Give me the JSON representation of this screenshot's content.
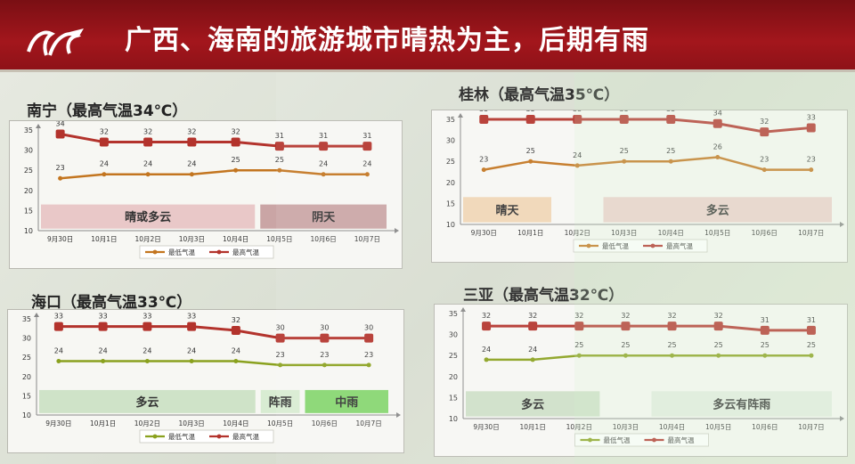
{
  "header": {
    "title": "广西、海南的旅游城市晴热为主，后期有雨"
  },
  "chart_data": [
    {
      "type": "line",
      "city": "南宁",
      "title": "南宁（最高气温34℃）",
      "categories": [
        "9月30日",
        "10月1日",
        "10月2日",
        "10月3日",
        "10月4日",
        "10月5日",
        "10月6日",
        "10月7日"
      ],
      "ylim": [
        10,
        35
      ],
      "yticks": [
        10,
        15,
        20,
        25,
        30,
        35
      ],
      "series": [
        {
          "name": "最高气温",
          "values": [
            34,
            32,
            32,
            32,
            32,
            31,
            31,
            31
          ],
          "color": "#b3332c"
        },
        {
          "name": "最低气温",
          "values": [
            23,
            24,
            24,
            24,
            25,
            25,
            24,
            24
          ],
          "color": "#c3751f"
        }
      ],
      "weather_bands": [
        {
          "label": "晴或多云",
          "start": 0,
          "end": 5,
          "color": "#e9c8c8"
        },
        {
          "label": "阴天",
          "start": 5,
          "end": 7,
          "color": "#caa5a5"
        }
      ],
      "legend": true
    },
    {
      "type": "line",
      "city": "桂林",
      "title": "桂林（最高气温35℃）",
      "categories": [
        "9月30日",
        "10月1日",
        "10月2日",
        "10月3日",
        "10月4日",
        "10月5日",
        "10月6日",
        "10月7日"
      ],
      "ylim": [
        10,
        35
      ],
      "yticks": [
        10,
        15,
        20,
        25,
        30,
        35
      ],
      "series": [
        {
          "name": "最高气温",
          "values": [
            35,
            35,
            35,
            35,
            35,
            34,
            32,
            33
          ],
          "color": "#b3332c"
        },
        {
          "name": "最低气温",
          "values": [
            23,
            25,
            24,
            25,
            25,
            26,
            23,
            23
          ],
          "color": "#c3751f"
        }
      ],
      "weather_bands": [
        {
          "label": "晴天",
          "start": 0,
          "end": 2,
          "color": "#f0d6b6"
        },
        {
          "label": "多云",
          "start": 3,
          "end": 7,
          "color": "#ecd1cc"
        }
      ],
      "legend": true
    },
    {
      "type": "line",
      "city": "海口",
      "title": "海口（最高气温33℃）",
      "categories": [
        "9月30日",
        "10月1日",
        "10月2日",
        "10月3日",
        "10月4日",
        "10月5日",
        "10月6日",
        "10月7日"
      ],
      "ylim": [
        10,
        35
      ],
      "yticks": [
        10,
        15,
        20,
        25,
        30,
        35
      ],
      "series": [
        {
          "name": "最高气温",
          "values": [
            33,
            33,
            33,
            33,
            32,
            30,
            30,
            30
          ],
          "color": "#b3332c"
        },
        {
          "name": "最低气温",
          "values": [
            24,
            24,
            24,
            24,
            24,
            23,
            23,
            23
          ],
          "color": "#8aa11e"
        }
      ],
      "weather_bands": [
        {
          "label": "多云",
          "start": 0,
          "end": 5,
          "color": "#cfe3c8"
        },
        {
          "label": "阵雨",
          "start": 5,
          "end": 6,
          "color": "#d8ecd2"
        },
        {
          "label": "中雨",
          "start": 6,
          "end": 7,
          "color": "#86d66f"
        }
      ],
      "legend": true
    },
    {
      "type": "line",
      "city": "三亚",
      "title": "三亚（最高气温32℃）",
      "categories": [
        "9月30日",
        "10月1日",
        "10月2日",
        "10月3日",
        "10月4日",
        "10月5日",
        "10月6日",
        "10月7日"
      ],
      "ylim": [
        10,
        35
      ],
      "yticks": [
        10,
        15,
        20,
        25,
        30,
        35
      ],
      "series": [
        {
          "name": "最高气温",
          "values": [
            32,
            32,
            32,
            32,
            32,
            32,
            31,
            31
          ],
          "color": "#b3332c"
        },
        {
          "name": "最低气温",
          "values": [
            24,
            24,
            25,
            25,
            25,
            25,
            25,
            25
          ],
          "color": "#8aa11e"
        }
      ],
      "weather_bands": [
        {
          "label": "多云",
          "start": 0,
          "end": 3,
          "color": "#cfe0c8"
        },
        {
          "label": "多云有阵雨",
          "start": 4,
          "end": 7,
          "color": "#e3ece0"
        }
      ],
      "legend": true
    }
  ]
}
